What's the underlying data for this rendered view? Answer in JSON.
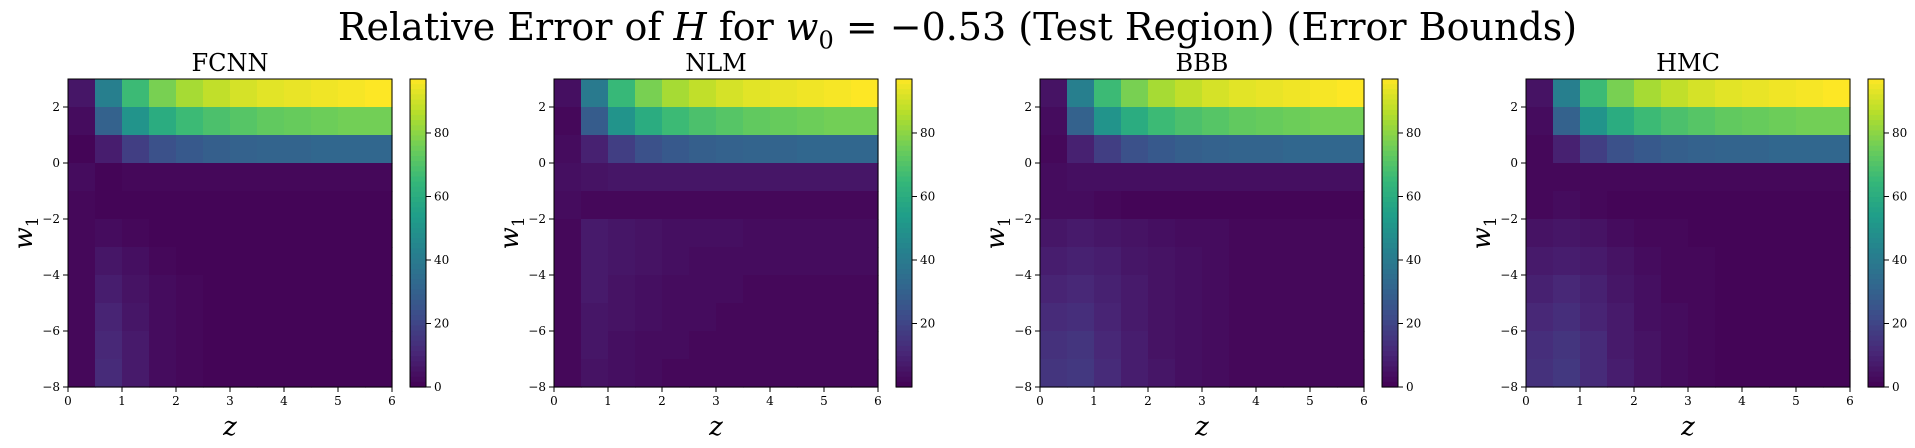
{
  "title": {
    "prefix": "Relative Error of ",
    "var_h": "H",
    "for": " for ",
    "var_w": "w",
    "sub0": "0",
    "eq": " = −0.53",
    "suffix": " (Test Region) (Error Bounds)"
  },
  "colormap": [
    "#440154",
    "#482777",
    "#3e4a89",
    "#31688e",
    "#26828e",
    "#1f9e89",
    "#35b779",
    "#6ece58",
    "#b5de2b",
    "#fde725"
  ],
  "chart_data": [
    {
      "type": "heatmap",
      "title": "FCNN",
      "xlabel": "z",
      "ylabel": "w",
      "ylabel_sub": "1",
      "xlim": [
        0,
        6
      ],
      "ylim": [
        -8,
        3
      ],
      "x_ticks": [
        0,
        1,
        2,
        3,
        4,
        5,
        6
      ],
      "y_ticks": [
        -8,
        -6,
        -4,
        -2,
        0,
        2
      ],
      "colorbar_range": [
        0,
        97
      ],
      "colorbar_ticks": [
        0,
        20,
        40,
        60,
        80
      ],
      "x": [
        0.25,
        0.75,
        1.25,
        1.75,
        2.25,
        2.75,
        3.25,
        3.75,
        4.25,
        4.75,
        5.25,
        5.75
      ],
      "y": [
        2.5,
        1.5,
        0.5,
        -0.5,
        -1.5,
        -2.5,
        -3.5,
        -4.5,
        -5.5,
        -6.5,
        -7.5
      ],
      "z": [
        [
          6,
          42,
          66,
          77,
          84,
          88,
          91,
          93,
          94,
          95,
          96,
          97
        ],
        [
          3,
          30,
          50,
          60,
          66,
          69,
          71,
          73,
          74,
          75,
          76,
          76
        ],
        [
          1,
          8,
          18,
          24,
          27,
          29,
          30,
          31,
          31,
          32,
          32,
          32
        ],
        [
          3,
          1,
          2,
          2,
          2,
          2,
          2,
          2,
          2,
          2,
          2,
          2
        ],
        [
          2,
          1,
          1,
          1,
          1,
          1,
          1,
          1,
          1,
          1,
          1,
          1
        ],
        [
          2,
          3,
          2,
          1,
          1,
          1,
          1,
          1,
          1,
          1,
          1,
          1
        ],
        [
          2,
          6,
          4,
          2,
          1,
          1,
          1,
          1,
          1,
          1,
          1,
          1
        ],
        [
          2,
          8,
          5,
          3,
          2,
          1,
          1,
          1,
          1,
          1,
          1,
          1
        ],
        [
          2,
          10,
          6,
          3,
          2,
          1,
          1,
          1,
          1,
          1,
          1,
          1
        ],
        [
          2,
          11,
          7,
          3,
          2,
          1,
          1,
          1,
          1,
          1,
          1,
          1
        ],
        [
          2,
          12,
          7,
          3,
          2,
          1,
          1,
          1,
          1,
          1,
          1,
          1
        ]
      ]
    },
    {
      "type": "heatmap",
      "title": "NLM",
      "xlabel": "z",
      "ylabel": "w",
      "ylabel_sub": "1",
      "xlim": [
        0,
        6
      ],
      "ylim": [
        -8,
        3
      ],
      "x_ticks": [
        0,
        1,
        2,
        3,
        4,
        5,
        6
      ],
      "y_ticks": [
        -8,
        -6,
        -4,
        -2,
        0,
        2
      ],
      "colorbar_range": [
        0,
        97
      ],
      "colorbar_ticks": [
        20,
        40,
        60,
        80
      ],
      "x": [
        0.25,
        0.75,
        1.25,
        1.75,
        2.25,
        2.75,
        3.25,
        3.75,
        4.25,
        4.75,
        5.25,
        5.75
      ],
      "y": [
        2.5,
        1.5,
        0.5,
        -0.5,
        -1.5,
        -2.5,
        -3.5,
        -4.5,
        -5.5,
        -6.5,
        -7.5
      ],
      "z": [
        [
          4,
          40,
          65,
          77,
          84,
          88,
          91,
          93,
          94,
          95,
          96,
          97
        ],
        [
          2,
          28,
          50,
          60,
          66,
          69,
          71,
          73,
          74,
          75,
          76,
          76
        ],
        [
          3,
          9,
          18,
          24,
          27,
          29,
          30,
          31,
          31,
          32,
          32,
          32
        ],
        [
          4,
          5,
          6,
          6,
          6,
          6,
          6,
          6,
          6,
          6,
          6,
          6
        ],
        [
          3,
          2,
          2,
          2,
          2,
          2,
          2,
          2,
          2,
          2,
          2,
          2
        ],
        [
          2,
          7,
          6,
          5,
          4,
          4,
          4,
          3,
          3,
          3,
          3,
          3
        ],
        [
          2,
          7,
          6,
          5,
          4,
          3,
          3,
          3,
          3,
          3,
          3,
          3
        ],
        [
          2,
          7,
          5,
          4,
          3,
          3,
          3,
          2,
          2,
          2,
          2,
          2
        ],
        [
          2,
          6,
          5,
          4,
          3,
          3,
          2,
          2,
          2,
          2,
          2,
          2
        ],
        [
          2,
          6,
          4,
          3,
          3,
          2,
          2,
          2,
          2,
          2,
          2,
          2
        ],
        [
          2,
          5,
          4,
          3,
          2,
          2,
          2,
          2,
          2,
          2,
          2,
          2
        ]
      ]
    },
    {
      "type": "heatmap",
      "title": "BBB",
      "xlabel": "z",
      "ylabel": "w",
      "ylabel_sub": "1",
      "xlim": [
        0,
        6
      ],
      "ylim": [
        -8,
        3
      ],
      "x_ticks": [
        0,
        1,
        2,
        3,
        4,
        5,
        6
      ],
      "y_ticks": [
        -8,
        -6,
        -4,
        -2,
        0,
        2
      ],
      "colorbar_range": [
        0,
        97
      ],
      "colorbar_ticks": [
        0,
        20,
        40,
        60,
        80
      ],
      "x": [
        0.25,
        0.75,
        1.25,
        1.75,
        2.25,
        2.75,
        3.25,
        3.75,
        4.25,
        4.75,
        5.25,
        5.75
      ],
      "y": [
        2.5,
        1.5,
        0.5,
        -0.5,
        -1.5,
        -2.5,
        -3.5,
        -4.5,
        -5.5,
        -6.5,
        -7.5
      ],
      "z": [
        [
          5,
          42,
          66,
          77,
          84,
          88,
          91,
          93,
          94,
          95,
          96,
          97
        ],
        [
          3,
          30,
          50,
          60,
          66,
          69,
          71,
          73,
          74,
          75,
          76,
          76
        ],
        [
          2,
          9,
          18,
          24,
          27,
          29,
          30,
          31,
          31,
          32,
          32,
          32
        ],
        [
          3,
          4,
          4,
          4,
          4,
          4,
          4,
          4,
          4,
          4,
          4,
          4
        ],
        [
          3,
          3,
          2,
          1,
          1,
          1,
          1,
          1,
          1,
          1,
          1,
          1
        ],
        [
          6,
          7,
          6,
          5,
          4,
          3,
          3,
          2,
          2,
          2,
          2,
          2
        ],
        [
          8,
          9,
          8,
          6,
          5,
          4,
          3,
          2,
          2,
          2,
          2,
          2
        ],
        [
          10,
          11,
          9,
          7,
          5,
          4,
          3,
          2,
          2,
          2,
          2,
          2
        ],
        [
          12,
          13,
          10,
          7,
          5,
          4,
          3,
          2,
          2,
          2,
          2,
          2
        ],
        [
          14,
          15,
          11,
          8,
          5,
          4,
          3,
          2,
          2,
          2,
          2,
          2
        ],
        [
          15,
          16,
          12,
          8,
          6,
          4,
          3,
          2,
          2,
          2,
          2,
          2
        ]
      ]
    },
    {
      "type": "heatmap",
      "title": "HMC",
      "xlabel": "z",
      "ylabel": "w",
      "ylabel_sub": "1",
      "xlim": [
        0,
        6
      ],
      "ylim": [
        -8,
        3
      ],
      "x_ticks": [
        0,
        1,
        2,
        3,
        4,
        5,
        6
      ],
      "y_ticks": [
        -8,
        -6,
        -4,
        -2,
        0,
        2
      ],
      "colorbar_range": [
        0,
        97
      ],
      "colorbar_ticks": [
        0,
        20,
        40,
        60,
        80
      ],
      "x": [
        0.25,
        0.75,
        1.25,
        1.75,
        2.25,
        2.75,
        3.25,
        3.75,
        4.25,
        4.75,
        5.25,
        5.75
      ],
      "y": [
        2.5,
        1.5,
        0.5,
        -0.5,
        -1.5,
        -2.5,
        -3.5,
        -4.5,
        -5.5,
        -6.5,
        -7.5
      ],
      "z": [
        [
          5,
          42,
          66,
          77,
          84,
          88,
          91,
          93,
          94,
          95,
          96,
          97
        ],
        [
          3,
          30,
          50,
          60,
          66,
          69,
          71,
          73,
          74,
          75,
          76,
          76
        ],
        [
          2,
          9,
          18,
          24,
          27,
          29,
          30,
          31,
          31,
          32,
          32,
          32
        ],
        [
          2,
          2,
          2,
          2,
          2,
          2,
          2,
          2,
          2,
          2,
          2,
          2
        ],
        [
          2,
          3,
          2,
          1,
          1,
          1,
          1,
          1,
          1,
          1,
          1,
          1
        ],
        [
          5,
          6,
          5,
          3,
          2,
          2,
          1,
          1,
          1,
          1,
          1,
          1
        ],
        [
          7,
          8,
          7,
          5,
          3,
          2,
          2,
          1,
          1,
          1,
          1,
          1
        ],
        [
          9,
          11,
          9,
          6,
          4,
          2,
          2,
          1,
          1,
          1,
          1,
          1
        ],
        [
          11,
          13,
          10,
          7,
          4,
          3,
          2,
          1,
          1,
          1,
          1,
          1
        ],
        [
          13,
          15,
          12,
          7,
          5,
          3,
          2,
          1,
          1,
          1,
          1,
          1
        ],
        [
          14,
          16,
          12,
          8,
          5,
          3,
          2,
          1,
          1,
          1,
          1,
          1
        ]
      ]
    }
  ]
}
